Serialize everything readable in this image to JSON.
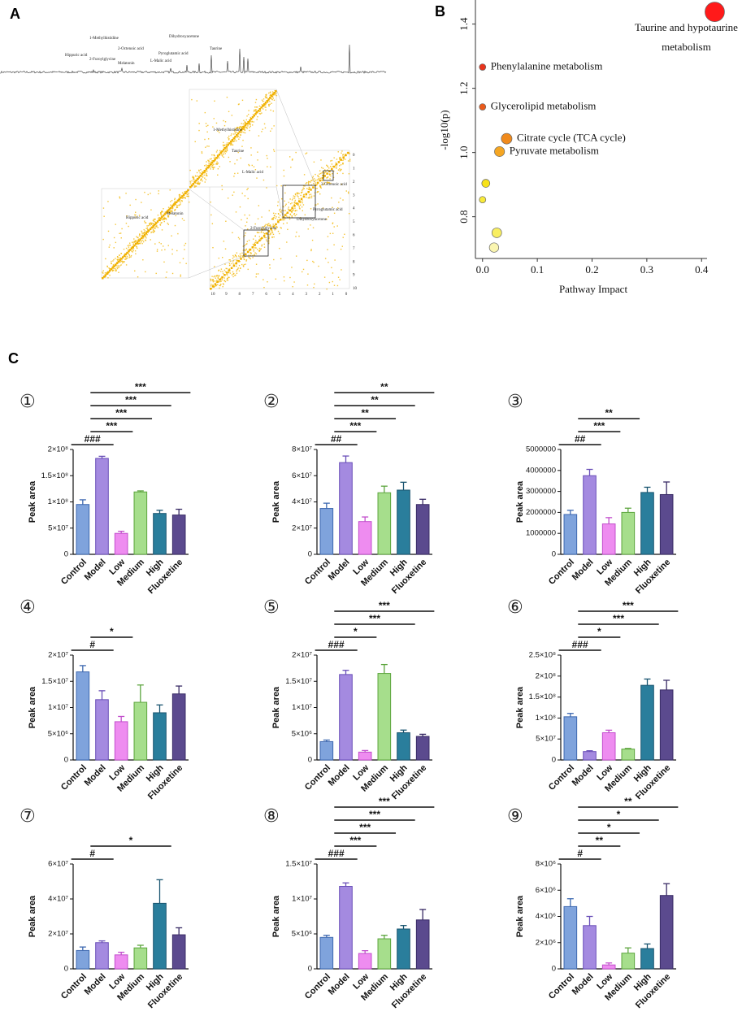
{
  "panel_labels": [
    "A",
    "B",
    "C"
  ],
  "panel_a": {
    "peak_labels": [
      "Hippuric acid",
      "2-Furoylglycine",
      "1-Methylhistidine",
      "Melatonin",
      "2-Octenoic acid",
      "L-Malic acid",
      "Pyroglutamic acid",
      "Dihydroxyacetone",
      "Taurine"
    ],
    "map_labels": [
      "1-Methylhistidine",
      "Taurine",
      "L-Malic acid",
      "Hippuric acid",
      "Melatonin",
      "2-Octenoic acid",
      "Pyroglutamic acid",
      "Dihydroxyacetone",
      "2-Furoylglycine"
    ],
    "map_ticks": [
      10,
      9,
      8,
      7,
      6,
      5,
      4,
      3,
      2,
      1,
      0
    ]
  },
  "chart_data": [
    {
      "type": "scatter",
      "x_label": "Pathway Impact",
      "y_label": "-log10(p)",
      "x": [
        0.424,
        0,
        0,
        0.044,
        0.031,
        0.006,
        0,
        0.026,
        0.021
      ],
      "values": [
        1.438,
        1.266,
        1.142,
        1.043,
        1.003,
        0.904,
        0.853,
        0.75,
        0.704
      ],
      "labels": [
        "Taurine and hypotaurine metabolism",
        "Phenylalanine metabolism",
        "Glycerolipid metabolism",
        "Citrate cycle (TCA cycle)",
        "Pyruvate metabolism",
        null,
        null,
        null,
        null
      ],
      "colors": [
        "#ff1a1a",
        "#e8341c",
        "#ea5a1a",
        "#f08a1c",
        "#f5a623",
        "#f7e21a",
        "#f8ea3a",
        "#f8ee60",
        "#faf5b0"
      ],
      "xlim": [
        -0.013,
        0.41
      ],
      "ylim": [
        0.67,
        1.475
      ],
      "xticks": [
        {
          "value": 0,
          "label": "0.0"
        },
        0.1,
        0.2,
        0.3,
        0.4
      ],
      "yticks": [
        0.8,
        {
          "value": 1,
          "label": "1.0"
        },
        1.2,
        1.4
      ]
    },
    {
      "type": "bar",
      "title": "①",
      "y_label": "Peak area",
      "categories": [
        "Control",
        "Model",
        "Low",
        "Medium",
        "High",
        "Fluoxetine"
      ],
      "values": [
        95000000,
        183000000,
        40000000,
        119000000,
        78000000,
        75000000
      ],
      "errors": [
        9000000,
        4000000,
        4000000,
        2000000,
        6000000,
        11000000
      ],
      "ylim": [
        0,
        200000000
      ],
      "yticks": [
        0,
        {
          "value": 50000000,
          "label": "5×10⁷"
        },
        {
          "value": 100000000,
          "label": "1×10⁸"
        },
        {
          "value": 150000000,
          "label": "1.5×10⁸"
        },
        {
          "value": 200000000,
          "label": "2×10⁸"
        }
      ],
      "comparisons": [
        {
          "groups": [
            "Control",
            "Model"
          ],
          "label": "###"
        },
        {
          "groups": [
            "Model",
            "Low"
          ],
          "label": "***"
        },
        {
          "groups": [
            "Model",
            "Medium"
          ],
          "label": "***"
        },
        {
          "groups": [
            "Model",
            "High"
          ],
          "label": "***"
        },
        {
          "groups": [
            "Model",
            "Fluoxetine"
          ],
          "label": "***"
        }
      ]
    },
    {
      "type": "bar",
      "title": "②",
      "y_label": "Peak area",
      "categories": [
        "Control",
        "Model",
        "Low",
        "Medium",
        "High",
        "Fluoxetine"
      ],
      "values": [
        35000000,
        70000000,
        25000000,
        47000000,
        49000000,
        38000000
      ],
      "errors": [
        4000000,
        5000000,
        3500000,
        5000000,
        6000000,
        4000000
      ],
      "ylim": [
        0,
        80000000
      ],
      "yticks": [
        0,
        {
          "value": 20000000,
          "label": "2×10⁷"
        },
        {
          "value": 40000000,
          "label": "4×10⁷"
        },
        {
          "value": 60000000,
          "label": "6×10⁷"
        },
        {
          "value": 80000000,
          "label": "8×10⁷"
        }
      ],
      "comparisons": [
        {
          "groups": [
            "Control",
            "Model"
          ],
          "label": "##"
        },
        {
          "groups": [
            "Model",
            "Low"
          ],
          "label": "***"
        },
        {
          "groups": [
            "Model",
            "Medium"
          ],
          "label": "**"
        },
        {
          "groups": [
            "Model",
            "High"
          ],
          "label": "**"
        },
        {
          "groups": [
            "Model",
            "Fluoxetine"
          ],
          "label": "**"
        }
      ]
    },
    {
      "type": "bar",
      "title": "③",
      "y_label": "Peak area",
      "categories": [
        "Control",
        "Model",
        "Low",
        "Medium",
        "High",
        "Fluoxetine"
      ],
      "values": [
        1900000,
        3750000,
        1450000,
        2000000,
        2950000,
        2850000
      ],
      "errors": [
        200000,
        300000,
        300000,
        200000,
        250000,
        600000
      ],
      "ylim": [
        0,
        5000000
      ],
      "yticks": [
        0,
        1000000,
        2000000,
        3000000,
        4000000,
        5000000
      ],
      "comparisons": [
        {
          "groups": [
            "Control",
            "Model"
          ],
          "label": "##"
        },
        {
          "groups": [
            "Model",
            "Low"
          ],
          "label": "***"
        },
        {
          "groups": [
            "Model",
            "Medium"
          ],
          "label": "**"
        }
      ]
    },
    {
      "type": "bar",
      "title": "④",
      "y_label": "Peak area",
      "categories": [
        "Control",
        "Model",
        "Low",
        "Medium",
        "High",
        "Fluoxetine"
      ],
      "values": [
        16800000,
        11500000,
        7300000,
        11000000,
        9000000,
        12600000
      ],
      "errors": [
        1200000,
        1700000,
        1000000,
        3300000,
        1500000,
        1500000
      ],
      "ylim": [
        0,
        20000000
      ],
      "yticks": [
        0,
        {
          "value": 5000000,
          "label": "5×10⁶"
        },
        {
          "value": 10000000,
          "label": "1×10⁷"
        },
        {
          "value": 15000000,
          "label": "1.5×10⁷"
        },
        {
          "value": 20000000,
          "label": "2×10⁷"
        }
      ],
      "comparisons": [
        {
          "groups": [
            "Control",
            "Model"
          ],
          "label": "#"
        },
        {
          "groups": [
            "Model",
            "Low"
          ],
          "label": "*"
        }
      ]
    },
    {
      "type": "bar",
      "title": "⑤",
      "y_label": "Peak area",
      "categories": [
        "Control",
        "Model",
        "Low",
        "Medium",
        "High",
        "Fluoxetine"
      ],
      "values": [
        3500000,
        16300000,
        1500000,
        16500000,
        5200000,
        4500000
      ],
      "errors": [
        300000,
        800000,
        300000,
        1700000,
        500000,
        400000
      ],
      "ylim": [
        0,
        20000000
      ],
      "yticks": [
        0,
        {
          "value": 5000000,
          "label": "5×10⁶"
        },
        {
          "value": 10000000,
          "label": "1×10⁷"
        },
        {
          "value": 15000000,
          "label": "1.5×10⁷"
        },
        {
          "value": 20000000,
          "label": "2×10⁷"
        }
      ],
      "comparisons": [
        {
          "groups": [
            "Control",
            "Model"
          ],
          "label": "###"
        },
        {
          "groups": [
            "Model",
            "Low"
          ],
          "label": "*"
        },
        {
          "groups": [
            "Model",
            "High"
          ],
          "label": "***"
        },
        {
          "groups": [
            "Model",
            "Fluoxetine"
          ],
          "label": "***"
        }
      ]
    },
    {
      "type": "bar",
      "title": "⑥",
      "y_label": "Peak area",
      "categories": [
        "Control",
        "Model",
        "Low",
        "Medium",
        "High",
        "Fluoxetine"
      ],
      "values": [
        103000000,
        20000000,
        65000000,
        26000000,
        178000000,
        167000000
      ],
      "errors": [
        8000000,
        2000000,
        6000000,
        1500000,
        15000000,
        23000000
      ],
      "ylim": [
        0,
        250000000
      ],
      "yticks": [
        0,
        {
          "value": 50000000,
          "label": "5×10⁷"
        },
        {
          "value": 100000000,
          "label": "1×10⁸"
        },
        {
          "value": 150000000,
          "label": "1.5×10⁸"
        },
        {
          "value": 200000000,
          "label": "2×10⁸"
        },
        {
          "value": 250000000,
          "label": "2.5×10⁸"
        }
      ],
      "comparisons": [
        {
          "groups": [
            "Control",
            "Model"
          ],
          "label": "###"
        },
        {
          "groups": [
            "Model",
            "Low"
          ],
          "label": "*"
        },
        {
          "groups": [
            "Model",
            "High"
          ],
          "label": "***"
        },
        {
          "groups": [
            "Model",
            "Fluoxetine"
          ],
          "label": "***"
        }
      ]
    },
    {
      "type": "bar",
      "title": "⑦",
      "y_label": "Peak area",
      "categories": [
        "Control",
        "Model",
        "Low",
        "Medium",
        "High",
        "Fluoxetine"
      ],
      "values": [
        10500000,
        15000000,
        8000000,
        12000000,
        37500000,
        19500000
      ],
      "errors": [
        2000000,
        1000000,
        1500000,
        1500000,
        13500000,
        4000000
      ],
      "ylim": [
        0,
        60000000
      ],
      "yticks": [
        0,
        {
          "value": 20000000,
          "label": "2×10⁷"
        },
        {
          "value": 40000000,
          "label": "4×10⁷"
        },
        {
          "value": 60000000,
          "label": "6×10⁷"
        }
      ],
      "comparisons": [
        {
          "groups": [
            "Control",
            "Model"
          ],
          "label": "#"
        },
        {
          "groups": [
            "Model",
            "High"
          ],
          "label": "*"
        }
      ]
    },
    {
      "type": "bar",
      "title": "⑧",
      "y_label": "Peak area",
      "categories": [
        "Control",
        "Model",
        "Low",
        "Medium",
        "High",
        "Fluoxetine"
      ],
      "values": [
        4500000,
        11800000,
        2200000,
        4300000,
        5700000,
        7000000
      ],
      "errors": [
        300000,
        500000,
        400000,
        500000,
        500000,
        1500000
      ],
      "ylim": [
        0,
        15000000
      ],
      "yticks": [
        0,
        {
          "value": 5000000,
          "label": "5×10⁶"
        },
        {
          "value": 10000000,
          "label": "1×10⁷"
        },
        {
          "value": 15000000,
          "label": "1.5×10⁷"
        }
      ],
      "comparisons": [
        {
          "groups": [
            "Control",
            "Model"
          ],
          "label": "###"
        },
        {
          "groups": [
            "Model",
            "Low"
          ],
          "label": "***"
        },
        {
          "groups": [
            "Model",
            "Medium"
          ],
          "label": "***"
        },
        {
          "groups": [
            "Model",
            "High"
          ],
          "label": "***"
        },
        {
          "groups": [
            "Model",
            "Fluoxetine"
          ],
          "label": "***"
        }
      ]
    },
    {
      "type": "bar",
      "title": "⑨",
      "y_label": "Peak area",
      "categories": [
        "Control",
        "Model",
        "Low",
        "Medium",
        "High",
        "Fluoxetine"
      ],
      "values": [
        4750000,
        3300000,
        300000,
        1200000,
        1550000,
        5600000
      ],
      "errors": [
        600000,
        700000,
        150000,
        400000,
        350000,
        900000
      ],
      "ylim": [
        0,
        8000000
      ],
      "yticks": [
        0,
        {
          "value": 2000000,
          "label": "2×10⁶"
        },
        {
          "value": 4000000,
          "label": "4×10⁶"
        },
        {
          "value": 6000000,
          "label": "6×10⁶"
        },
        {
          "value": 8000000,
          "label": "8×10⁶"
        }
      ],
      "comparisons": [
        {
          "groups": [
            "Control",
            "Model"
          ],
          "label": "#"
        },
        {
          "groups": [
            "Model",
            "Low"
          ],
          "label": "**"
        },
        {
          "groups": [
            "Model",
            "Medium"
          ],
          "label": "*"
        },
        {
          "groups": [
            "Model",
            "High"
          ],
          "label": "*"
        },
        {
          "groups": [
            "Model",
            "Fluoxetine"
          ],
          "label": "**"
        }
      ]
    }
  ]
}
